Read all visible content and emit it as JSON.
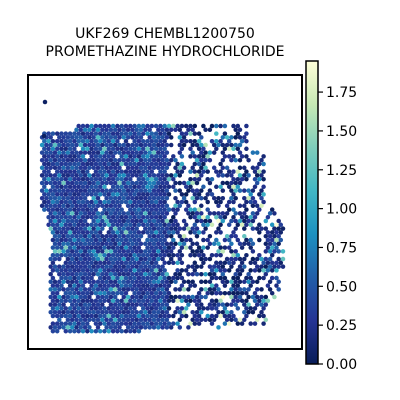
{
  "chart_data": {
    "type": "heatmap",
    "subtype": "spatial-hexbin",
    "title_lines": [
      "UKF269 CHEMBL1200750",
      "PROMETHAZINE HYDROCHLORIDE"
    ],
    "colormap": "YlGnBu",
    "colormap_stops": [
      "#081d58",
      "#253494",
      "#225ea8",
      "#1d91c0",
      "#41b6c4",
      "#7fcdbb",
      "#c7e9b4",
      "#ffffd9"
    ],
    "background": "#ffffff",
    "axes_frame": true,
    "grid": false,
    "colorbar": {
      "position": "right",
      "min": 0.0,
      "max": 1.95,
      "ticks": [
        0.0,
        0.25,
        0.5,
        0.75,
        1.0,
        1.25,
        1.5,
        1.75
      ],
      "tick_labels": [
        "0.00",
        "0.25",
        "0.50",
        "0.75",
        "1.00",
        "1.25",
        "1.50",
        "1.75"
      ]
    },
    "value_distribution": {
      "left_tissue_region": "dense spots, mostly 0.25-0.50 with scattered 0.75-1.25",
      "right_tissue_region": "sparser spots, mostly 0.0-0.25 with some up to 1.95"
    }
  }
}
